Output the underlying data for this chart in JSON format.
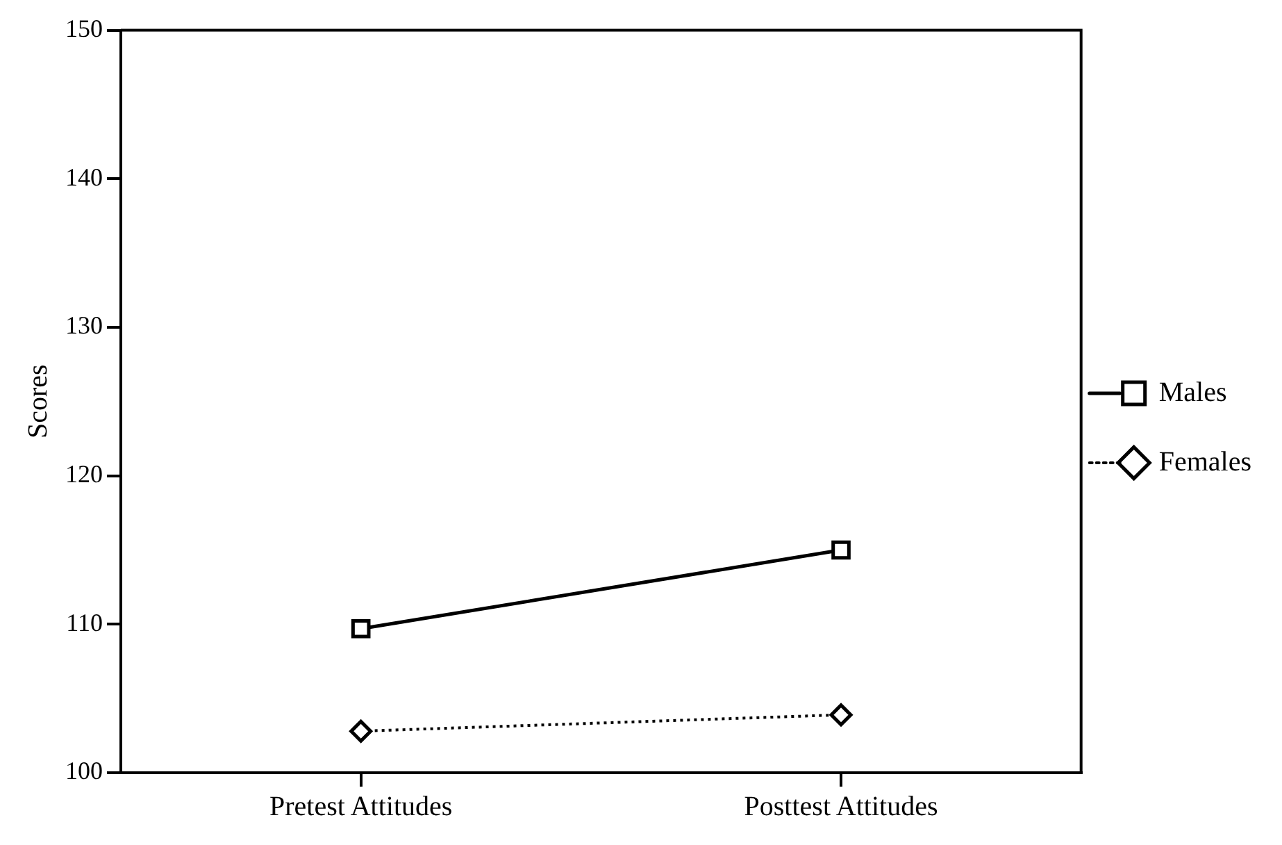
{
  "chart_data": {
    "type": "line",
    "ylabel": "Scores",
    "categories": [
      "Pretest Attitudes",
      "Posttest Attitudes"
    ],
    "series": [
      {
        "name": "Males",
        "color": "#000000",
        "values": [
          109.7,
          115.0
        ],
        "marker": "square",
        "line_style": "solid"
      },
      {
        "name": "Females",
        "color": "#000000",
        "values": [
          102.8,
          103.9
        ],
        "marker": "diamond",
        "line_style": "dotted"
      }
    ],
    "ylim": [
      100,
      150
    ],
    "yticks": [
      100,
      110,
      120,
      130,
      140,
      150
    ],
    "grid": false,
    "legend": "right"
  }
}
